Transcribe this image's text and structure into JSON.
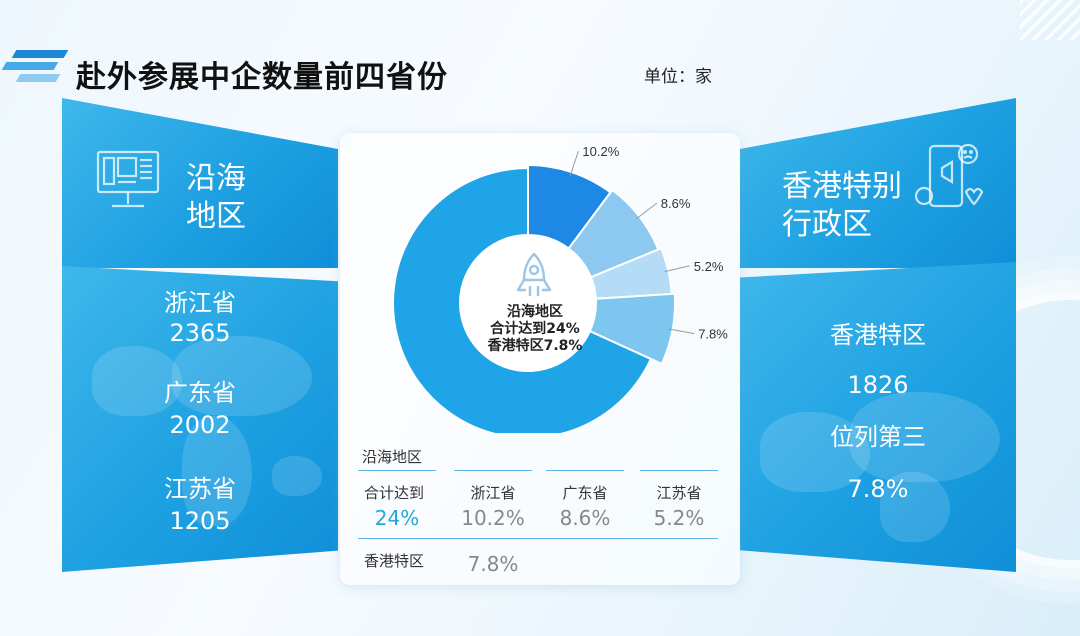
{
  "title": "赴外参展中企数量前四省份",
  "unit": "单位：家",
  "left_panel": {
    "heading": [
      "沿海",
      "地区"
    ],
    "items": [
      {
        "name": "浙江省",
        "value": "2365"
      },
      {
        "name": "广东省",
        "value": "2002"
      },
      {
        "name": "江苏省",
        "value": "1205"
      }
    ]
  },
  "right_panel": {
    "heading": [
      "香港特别",
      "行政区"
    ],
    "lines": [
      "香港特区",
      "1826",
      "位列第三",
      "7.8%"
    ]
  },
  "donut_center": [
    "沿海地区",
    "合计达到24%",
    "香港特区7.8%"
  ],
  "summary": {
    "group_label": "沿海地区",
    "total_label": "合计达到",
    "total_value": "24%",
    "headers": [
      "浙江省",
      "广东省",
      "江苏省"
    ],
    "values": [
      "10.2%",
      "8.6%",
      "5.2%"
    ],
    "hk_label": "香港特区",
    "hk_value": "7.8%"
  },
  "colors": {
    "accent": "#1e88d6",
    "panel": "#1ea1e2",
    "highlight": "#22a7d8"
  },
  "chart_data": {
    "type": "pie",
    "style": "donut",
    "slices": [
      {
        "label": "10.2%",
        "value": 10.2,
        "color": "#1e88e5"
      },
      {
        "label": "8.6%",
        "value": 8.6,
        "color": "#8cc8ef"
      },
      {
        "label": "5.2%",
        "value": 5.2,
        "color": "#b4dcf6"
      },
      {
        "label": "7.8%",
        "value": 7.8,
        "color": "#7cc6f0"
      },
      {
        "label": "",
        "value": 68.2,
        "color": "#1fa4e8"
      }
    ]
  }
}
